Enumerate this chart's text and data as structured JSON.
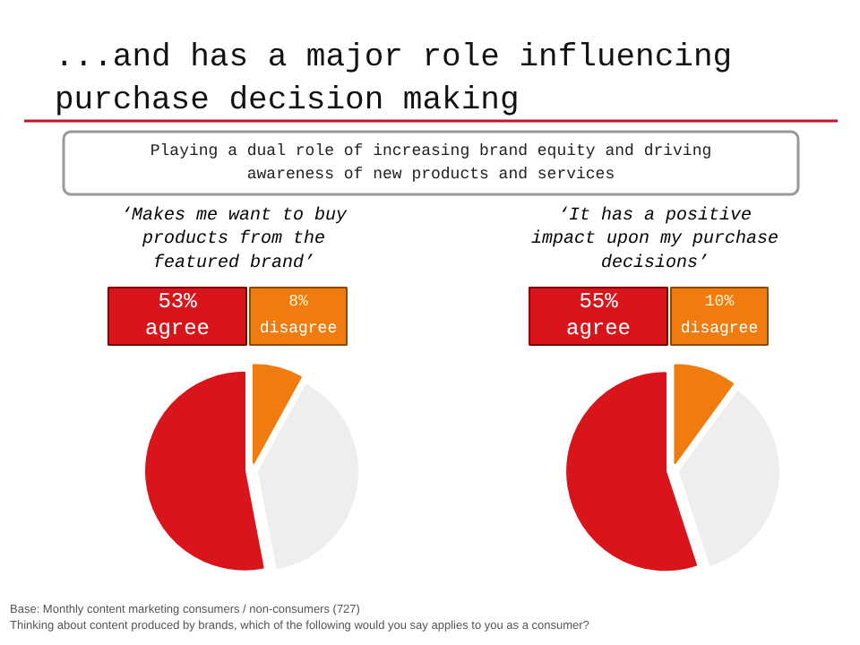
{
  "chart_data": [
    {
      "type": "other",
      "title": "...and has a major role influencing purchase decision making",
      "subtitle": "Playing a dual role of increasing brand equity and driving awareness of new products and services",
      "annotations": [
        "Base: Monthly content marketing consumers / non-consumers (727)",
        "Thinking about content produced by brands, which of the following would you say applies to you as a consumer?"
      ]
    },
    {
      "type": "pie",
      "title": "‘Makes me want to buy products from the featured brand’",
      "categories": [
        "agree",
        "disagree",
        null
      ],
      "values": [
        53,
        8,
        39
      ],
      "colors": [
        "#d9141b",
        "#f07c10",
        "#eeeeee"
      ],
      "value_labels": [
        "53%",
        "8%",
        null
      ]
    },
    {
      "type": "pie",
      "title": "‘It has a positive impact upon my purchase decisions’",
      "categories": [
        "agree",
        "disagree",
        null
      ],
      "values": [
        55,
        10,
        35
      ],
      "colors": [
        "#d9141b",
        "#f07c10",
        "#eeeeee"
      ],
      "value_labels": [
        "55%",
        "10%",
        null
      ]
    }
  ]
}
